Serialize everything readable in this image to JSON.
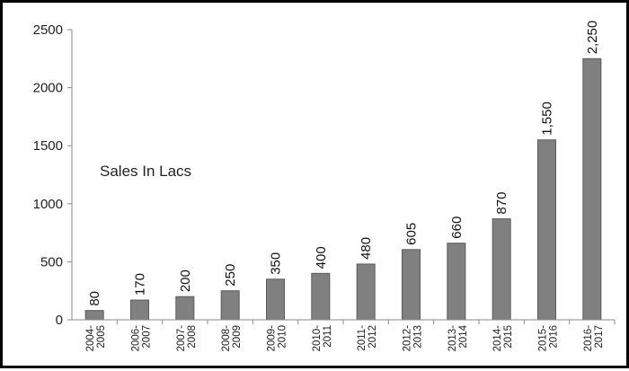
{
  "chart_data": {
    "type": "bar",
    "categories": [
      "2004-2005",
      "2006-2007",
      "2007-2008",
      "2008-2009",
      "2009-2010",
      "2010-2011",
      "2011-2012",
      "2012-2013",
      "2013-2014",
      "2014-2015",
      "2015-2016",
      "2016-2017"
    ],
    "category_labels": [
      [
        "2004-",
        "2005"
      ],
      [
        "2006-",
        "2007"
      ],
      [
        "2007-",
        "2008"
      ],
      [
        "2008-",
        "2009"
      ],
      [
        "2009-",
        "2010"
      ],
      [
        "2010-",
        "2011"
      ],
      [
        "2011-",
        "2012"
      ],
      [
        "2012-",
        "2013"
      ],
      [
        "2013-",
        "2014"
      ],
      [
        "2014-",
        "2015"
      ],
      [
        "2015-",
        "2016"
      ],
      [
        "2016-",
        "2017"
      ]
    ],
    "values": [
      80,
      170,
      200,
      250,
      350,
      400,
      480,
      605,
      660,
      870,
      1550,
      2250
    ],
    "data_labels": [
      "80",
      "170",
      "200",
      "250",
      "350",
      "400",
      "480",
      "605",
      "660",
      "870",
      "1,550",
      "2,250"
    ],
    "annotation": "Sales In Lacs",
    "y_ticks": [
      "0",
      "500",
      "1000",
      "1500",
      "2000",
      "2500"
    ],
    "ylim": [
      0,
      2500
    ],
    "grid": false,
    "legend": "none",
    "bar_color": "#808080",
    "bar_edge_color": "#5a5a5a"
  }
}
